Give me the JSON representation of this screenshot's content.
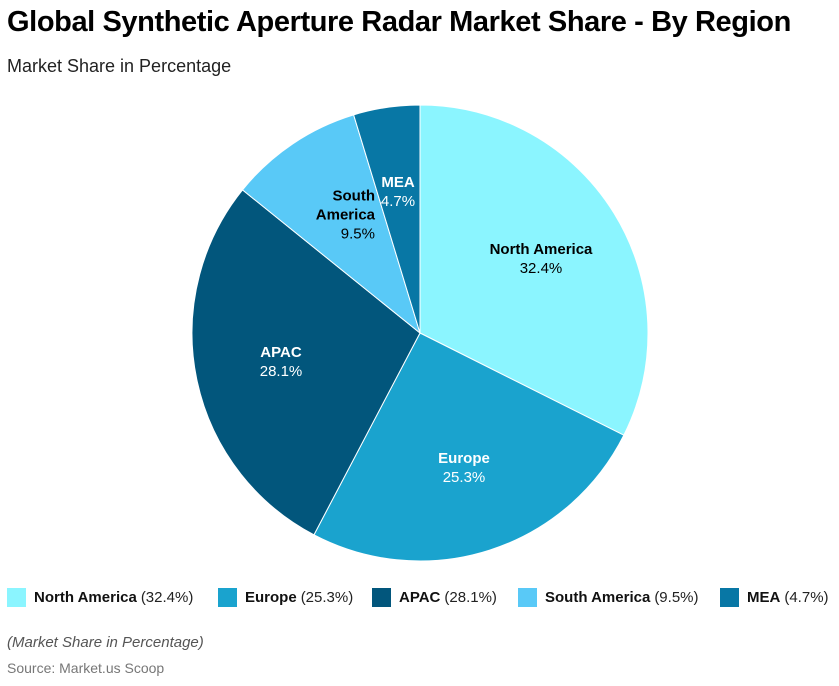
{
  "header": {
    "title": "Global Synthetic Aperture Radar Market Share - By Region",
    "subtitle": "Market Share in Percentage"
  },
  "chart_data": {
    "type": "pie",
    "title": "Global Synthetic Aperture Radar Market Share - By Region",
    "subtitle": "Market Share in Percentage",
    "categories": [
      "North America",
      "Europe",
      "APAC",
      "South America",
      "MEA"
    ],
    "values": [
      32.4,
      25.3,
      28.1,
      9.5,
      4.7
    ],
    "unit": "%",
    "colors": [
      "#8BF5FF",
      "#1AA3CE",
      "#02567C",
      "#59C9F7",
      "#0877A5"
    ],
    "label_colors": [
      "#000000",
      "#ffffff",
      "#ffffff",
      "#000000",
      "#ffffff"
    ],
    "start_angle_deg": 0,
    "direction": "clockwise",
    "legend_position": "bottom",
    "note": "(Market Share in Percentage)",
    "source": "Source: Market.us Scoop"
  },
  "slices": [
    {
      "name": "North America",
      "pct": "32.4%",
      "value": 32.4,
      "color": "#8BF5FF",
      "text_color": "#000000"
    },
    {
      "name": "Europe",
      "pct": "25.3%",
      "value": 25.3,
      "color": "#1AA3CE",
      "text_color": "#ffffff"
    },
    {
      "name": "APAC",
      "pct": "28.1%",
      "value": 28.1,
      "color": "#02567C",
      "text_color": "#ffffff"
    },
    {
      "name": "South America",
      "pct": "9.5%",
      "value": 9.5,
      "color": "#59C9F7",
      "text_color": "#000000"
    },
    {
      "name": "MEA",
      "pct": "4.7%",
      "value": 4.7,
      "color": "#0877A5",
      "text_color": "#ffffff"
    }
  ],
  "legend": [
    {
      "name": "North America",
      "value": "(32.4%)",
      "color": "#8BF5FF"
    },
    {
      "name": "Europe",
      "value": "(25.3%)",
      "color": "#1AA3CE"
    },
    {
      "name": "APAC",
      "value": "(28.1%)",
      "color": "#02567C"
    },
    {
      "name": "South America",
      "value": "(9.5%)",
      "color": "#59C9F7"
    },
    {
      "name": "MEA",
      "value": "(4.7%)",
      "color": "#0877A5"
    }
  ],
  "footer": {
    "note": "(Market Share in Percentage)",
    "source": "Source: Market.us Scoop"
  }
}
